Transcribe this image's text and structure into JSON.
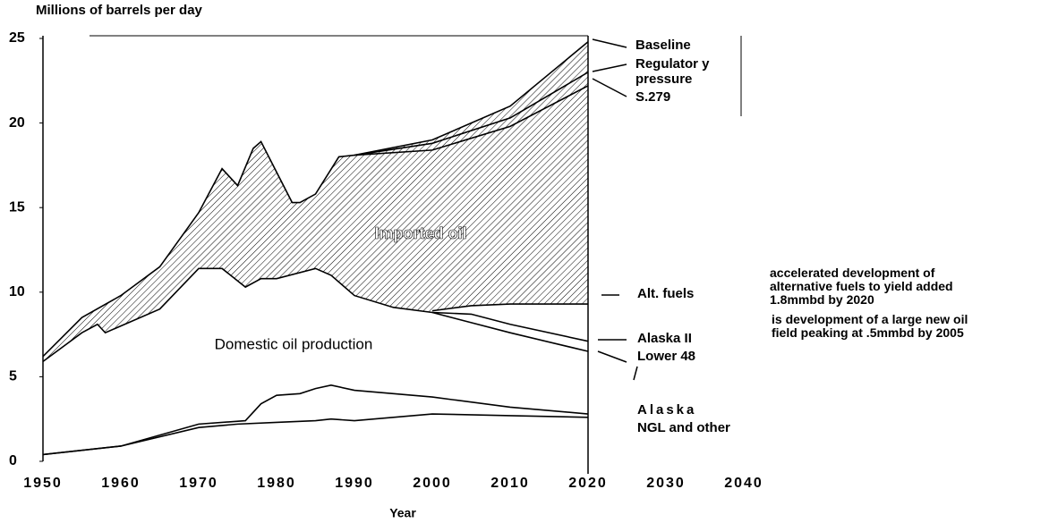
{
  "chart_data": {
    "type": "line",
    "title": "Millions of barrels per day",
    "x_label": "Year",
    "xlim": [
      1950,
      2040
    ],
    "xticks": [
      1950,
      1960,
      1970,
      1980,
      1990,
      2000,
      2010,
      2020,
      2030,
      2040
    ],
    "ylim": [
      0,
      25
    ],
    "yticks": [
      0,
      5,
      10,
      15,
      20,
      25
    ],
    "color": "#000000",
    "annotations": [
      "Imported oil",
      "Domestic oil production"
    ],
    "notes": [
      "accelerated development of alternative fuels to yield added 1.8mmbd by 2020",
      "is development of a large new oil field peaking at .5mmbd by 2005"
    ],
    "series": [
      {
        "name": "Baseline",
        "x": [
          1950,
          1955,
          1960,
          1965,
          1970,
          1973,
          1975,
          1977,
          1978,
          1980,
          1982,
          1983,
          1985,
          1988,
          1990,
          2000,
          2010,
          2020
        ],
        "values": [
          6.2,
          8.5,
          9.8,
          11.5,
          14.7,
          17.3,
          16.3,
          18.5,
          18.9,
          17.1,
          15.3,
          15.3,
          15.8,
          18.0,
          18.1,
          19.0,
          21.0,
          24.8
        ]
      },
      {
        "name": "Regulator y pressure",
        "x": [
          1990,
          2000,
          2010,
          2020
        ],
        "values": [
          18.1,
          18.8,
          20.3,
          23.0
        ]
      },
      {
        "name": "S.279",
        "x": [
          1990,
          2000,
          2010,
          2020
        ],
        "values": [
          18.1,
          18.4,
          19.8,
          22.2
        ]
      },
      {
        "name": "Alt. fuels",
        "x": [
          2000,
          2005,
          2010,
          2020
        ],
        "values": [
          8.9,
          9.2,
          9.3,
          9.3
        ]
      },
      {
        "name": "Alaska II",
        "x": [
          2000,
          2005,
          2010,
          2020
        ],
        "values": [
          8.8,
          8.7,
          8.1,
          7.1
        ]
      },
      {
        "name": "Lower 48",
        "x": [
          1950,
          1955,
          1957,
          1958,
          1960,
          1965,
          1970,
          1973,
          1976,
          1978,
          1980,
          1985,
          1987,
          1990,
          1995,
          2000,
          2005,
          2010,
          2020
        ],
        "values": [
          5.9,
          7.6,
          8.1,
          7.6,
          8.0,
          9.0,
          11.4,
          11.4,
          10.3,
          10.8,
          10.8,
          11.4,
          11.0,
          9.8,
          9.1,
          8.8,
          8.2,
          7.6,
          6.5
        ]
      },
      {
        "name": "Alaska",
        "x": [
          1950,
          1960,
          1970,
          1976,
          1978,
          1980,
          1983,
          1985,
          1987,
          1990,
          2000,
          2010,
          2020
        ],
        "values": [
          0.4,
          0.9,
          2.2,
          2.4,
          3.4,
          3.9,
          4.0,
          4.3,
          4.5,
          4.2,
          3.8,
          3.2,
          2.8
        ]
      },
      {
        "name": "NGL and other",
        "x": [
          1950,
          1960,
          1970,
          1975,
          1980,
          1985,
          1987,
          1990,
          2000,
          2010,
          2020
        ],
        "values": [
          0.4,
          0.9,
          2.0,
          2.2,
          2.3,
          2.4,
          2.5,
          2.4,
          2.8,
          2.7,
          2.6
        ]
      }
    ]
  }
}
